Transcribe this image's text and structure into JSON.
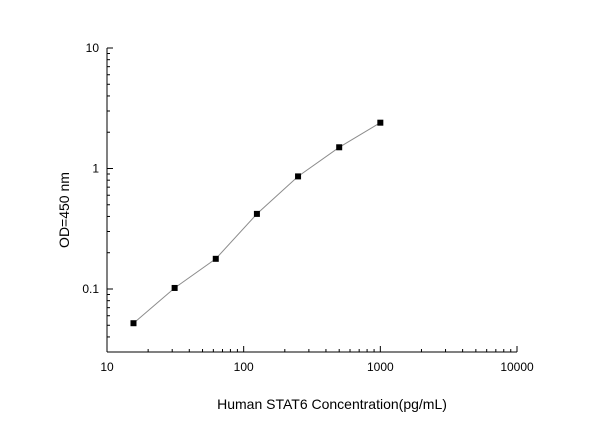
{
  "chart_data": {
    "type": "scatter",
    "xlabel": "Human STAT6 Concentration(pg/mL)",
    "ylabel": "OD=450 nm",
    "xscale": "log",
    "yscale": "log",
    "xlim": [
      10,
      10000
    ],
    "ylim": [
      0.03,
      10
    ],
    "xticks": [
      10,
      100,
      1000,
      10000
    ],
    "xtick_labels": [
      "10",
      "100",
      "1000",
      "10000"
    ],
    "yticks": [
      0.1,
      1,
      10
    ],
    "ytick_labels": [
      "0.1",
      "1",
      "10"
    ],
    "grid": false,
    "connected": true,
    "marker": "square",
    "series": [
      {
        "x": [
          15.625,
          31.25,
          62.5,
          125,
          250,
          500,
          1000
        ],
        "y": [
          0.052,
          0.102,
          0.178,
          0.42,
          0.86,
          1.5,
          2.4
        ]
      }
    ],
    "colors": {
      "line": "#8c8c8c",
      "marker": "#000000",
      "axis": "#000000"
    }
  }
}
